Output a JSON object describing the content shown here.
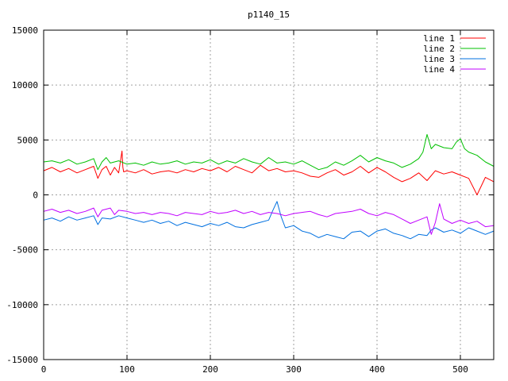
{
  "chart_data": {
    "type": "line",
    "title": "p1140_15",
    "xlim": [
      0,
      540
    ],
    "ylim": [
      -15000,
      15000
    ],
    "xticks": [
      0,
      100,
      200,
      300,
      400,
      500
    ],
    "yticks": [
      -15000,
      -10000,
      -5000,
      0,
      5000,
      10000,
      15000
    ],
    "grid": true,
    "legend_position": "top-right",
    "series": [
      {
        "name": "line 1",
        "color": "#ff0000",
        "x": [
          0,
          10,
          20,
          30,
          40,
          50,
          60,
          65,
          70,
          75,
          80,
          85,
          90,
          94,
          95,
          96,
          100,
          110,
          120,
          130,
          140,
          150,
          160,
          170,
          180,
          190,
          200,
          210,
          220,
          230,
          240,
          250,
          260,
          270,
          280,
          290,
          300,
          310,
          320,
          330,
          340,
          350,
          360,
          370,
          380,
          390,
          400,
          410,
          420,
          430,
          440,
          450,
          460,
          470,
          480,
          490,
          500,
          510,
          520,
          525,
          530,
          540
        ],
        "y": [
          2200,
          2500,
          2100,
          2400,
          2000,
          2300,
          2600,
          1500,
          2300,
          2600,
          1800,
          2500,
          2000,
          4000,
          2500,
          2100,
          2200,
          2000,
          2300,
          1900,
          2100,
          2200,
          2000,
          2300,
          2100,
          2400,
          2200,
          2500,
          2100,
          2600,
          2300,
          2000,
          2700,
          2200,
          2400,
          2100,
          2200,
          2000,
          1700,
          1600,
          2000,
          2300,
          1800,
          2100,
          2600,
          2000,
          2500,
          2100,
          1600,
          1200,
          1500,
          2000,
          1300,
          2200,
          1900,
          2100,
          1800,
          1500,
          0,
          800,
          1600,
          1200
        ]
      },
      {
        "name": "line 2",
        "color": "#00c000",
        "x": [
          0,
          10,
          20,
          30,
          40,
          50,
          60,
          65,
          70,
          75,
          80,
          90,
          100,
          110,
          120,
          130,
          140,
          150,
          160,
          170,
          180,
          190,
          200,
          210,
          220,
          230,
          240,
          250,
          260,
          270,
          280,
          290,
          300,
          310,
          320,
          330,
          340,
          350,
          360,
          370,
          380,
          390,
          400,
          410,
          420,
          430,
          440,
          450,
          455,
          460,
          465,
          470,
          480,
          490,
          495,
          500,
          505,
          510,
          520,
          530,
          540
        ],
        "y": [
          3000,
          3100,
          2900,
          3200,
          2800,
          3000,
          3300,
          2300,
          3000,
          3400,
          2900,
          3100,
          2800,
          2900,
          2700,
          3000,
          2800,
          2900,
          3100,
          2800,
          3000,
          2900,
          3200,
          2800,
          3100,
          2900,
          3300,
          3000,
          2800,
          3400,
          2900,
          3000,
          2800,
          3100,
          2700,
          2300,
          2500,
          3000,
          2700,
          3100,
          3600,
          3000,
          3400,
          3100,
          2900,
          2500,
          2800,
          3300,
          3900,
          5500,
          4200,
          4600,
          4300,
          4200,
          4800,
          5100,
          4200,
          3900,
          3600,
          3000,
          2600
        ]
      },
      {
        "name": "line 3",
        "color": "#0070e0",
        "x": [
          0,
          10,
          20,
          30,
          40,
          50,
          60,
          65,
          70,
          80,
          90,
          100,
          110,
          120,
          130,
          140,
          150,
          160,
          170,
          180,
          190,
          200,
          210,
          220,
          230,
          240,
          250,
          260,
          270,
          275,
          280,
          285,
          290,
          300,
          310,
          320,
          330,
          340,
          350,
          360,
          370,
          380,
          390,
          400,
          410,
          420,
          430,
          440,
          450,
          460,
          465,
          470,
          480,
          490,
          500,
          510,
          520,
          530,
          540
        ],
        "y": [
          -2300,
          -2100,
          -2400,
          -2000,
          -2300,
          -2100,
          -1900,
          -2700,
          -2100,
          -2200,
          -1900,
          -2100,
          -2300,
          -2500,
          -2300,
          -2600,
          -2400,
          -2800,
          -2500,
          -2700,
          -2900,
          -2600,
          -2800,
          -2500,
          -2900,
          -3000,
          -2700,
          -2500,
          -2300,
          -1400,
          -600,
          -2000,
          -3000,
          -2800,
          -3300,
          -3500,
          -3900,
          -3600,
          -3800,
          -4000,
          -3400,
          -3300,
          -3800,
          -3300,
          -3100,
          -3500,
          -3700,
          -4000,
          -3600,
          -3700,
          -3200,
          -3000,
          -3400,
          -3200,
          -3500,
          -3000,
          -3300,
          -3600,
          -3300
        ]
      },
      {
        "name": "line 4",
        "color": "#c000ff",
        "x": [
          0,
          10,
          20,
          30,
          40,
          50,
          60,
          65,
          70,
          80,
          85,
          90,
          100,
          110,
          120,
          130,
          140,
          150,
          160,
          170,
          180,
          190,
          200,
          210,
          220,
          230,
          240,
          250,
          260,
          270,
          280,
          290,
          300,
          310,
          320,
          330,
          340,
          350,
          360,
          370,
          380,
          390,
          400,
          410,
          420,
          430,
          440,
          450,
          460,
          465,
          470,
          475,
          480,
          490,
          500,
          510,
          520,
          530,
          540
        ],
        "y": [
          -1500,
          -1300,
          -1600,
          -1400,
          -1700,
          -1500,
          -1200,
          -2000,
          -1400,
          -1200,
          -1800,
          -1400,
          -1500,
          -1700,
          -1600,
          -1800,
          -1600,
          -1700,
          -1900,
          -1600,
          -1700,
          -1800,
          -1500,
          -1700,
          -1600,
          -1400,
          -1700,
          -1500,
          -1800,
          -1600,
          -1700,
          -1900,
          -1700,
          -1600,
          -1500,
          -1800,
          -2000,
          -1700,
          -1600,
          -1500,
          -1300,
          -1700,
          -1900,
          -1600,
          -1800,
          -2200,
          -2600,
          -2300,
          -2000,
          -3600,
          -2500,
          -800,
          -2200,
          -2600,
          -2300,
          -2600,
          -2400,
          -2900,
          -2800
        ]
      }
    ]
  }
}
